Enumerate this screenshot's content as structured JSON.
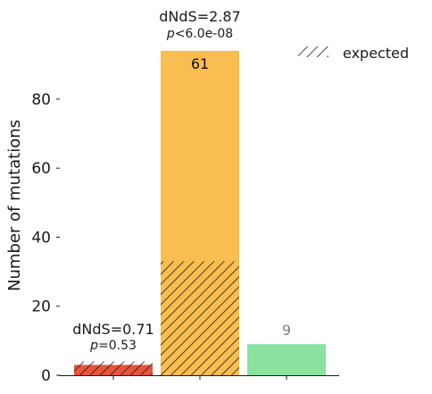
{
  "chart_data": {
    "type": "bar",
    "ylabel": "Number of mutations",
    "ylim": [
      0,
      95
    ],
    "y_ticks": [
      "0",
      "20",
      "40",
      "60",
      "80"
    ],
    "categories": [
      "",
      "",
      ""
    ],
    "series": [
      {
        "values": [
          3,
          94,
          9
        ],
        "colors": [
          "#e8533a",
          "#f9be4f",
          "#89e39e"
        ]
      }
    ],
    "expected": [
      4,
      33
    ],
    "bar_labels": [
      {
        "text": "",
        "color": "#222222"
      },
      {
        "text": "61",
        "color": "#111111"
      },
      {
        "text": "9",
        "color": "#808080"
      }
    ],
    "annotations": [
      {
        "dnds": "dNdS=0.71",
        "p_prefix": "p",
        "p_value": "=0.53"
      },
      {
        "dnds": "dNdS=2.87",
        "p_prefix": "p",
        "p_value": "<6.0e-08"
      }
    ],
    "legend": {
      "label": "expected",
      "position": "top-right"
    }
  }
}
